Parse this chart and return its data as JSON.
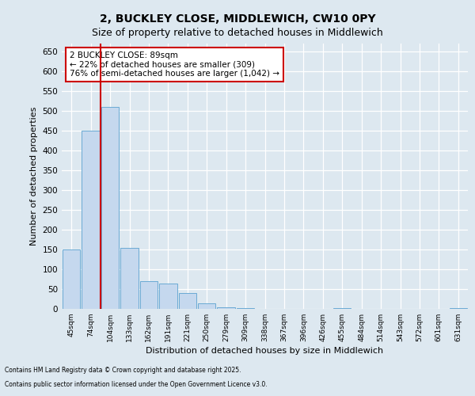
{
  "title1": "2, BUCKLEY CLOSE, MIDDLEWICH, CW10 0PY",
  "title2": "Size of property relative to detached houses in Middlewich",
  "xlabel": "Distribution of detached houses by size in Middlewich",
  "ylabel": "Number of detached properties",
  "categories": [
    "45sqm",
    "74sqm",
    "104sqm",
    "133sqm",
    "162sqm",
    "191sqm",
    "221sqm",
    "250sqm",
    "279sqm",
    "309sqm",
    "338sqm",
    "367sqm",
    "396sqm",
    "426sqm",
    "455sqm",
    "484sqm",
    "514sqm",
    "543sqm",
    "572sqm",
    "601sqm",
    "631sqm"
  ],
  "values": [
    150,
    450,
    510,
    155,
    70,
    65,
    40,
    15,
    5,
    2,
    0,
    0,
    0,
    0,
    2,
    0,
    0,
    0,
    0,
    0,
    2
  ],
  "bar_color": "#c5d8ee",
  "bar_edge_color": "#6aaad4",
  "vline_x_index": 2,
  "vline_color": "#cc0000",
  "annotation_title": "2 BUCKLEY CLOSE: 89sqm",
  "annotation_line1": "← 22% of detached houses are smaller (309)",
  "annotation_line2": "76% of semi-detached houses are larger (1,042) →",
  "annotation_box_color": "#cc0000",
  "ylim": [
    0,
    670
  ],
  "yticks": [
    0,
    50,
    100,
    150,
    200,
    250,
    300,
    350,
    400,
    450,
    500,
    550,
    600,
    650
  ],
  "footer1": "Contains HM Land Registry data © Crown copyright and database right 2025.",
  "footer2": "Contains public sector information licensed under the Open Government Licence v3.0.",
  "bg_color": "#dde8f0",
  "plot_bg_color": "#dde8f0",
  "title_fontsize": 10,
  "subtitle_fontsize": 9
}
